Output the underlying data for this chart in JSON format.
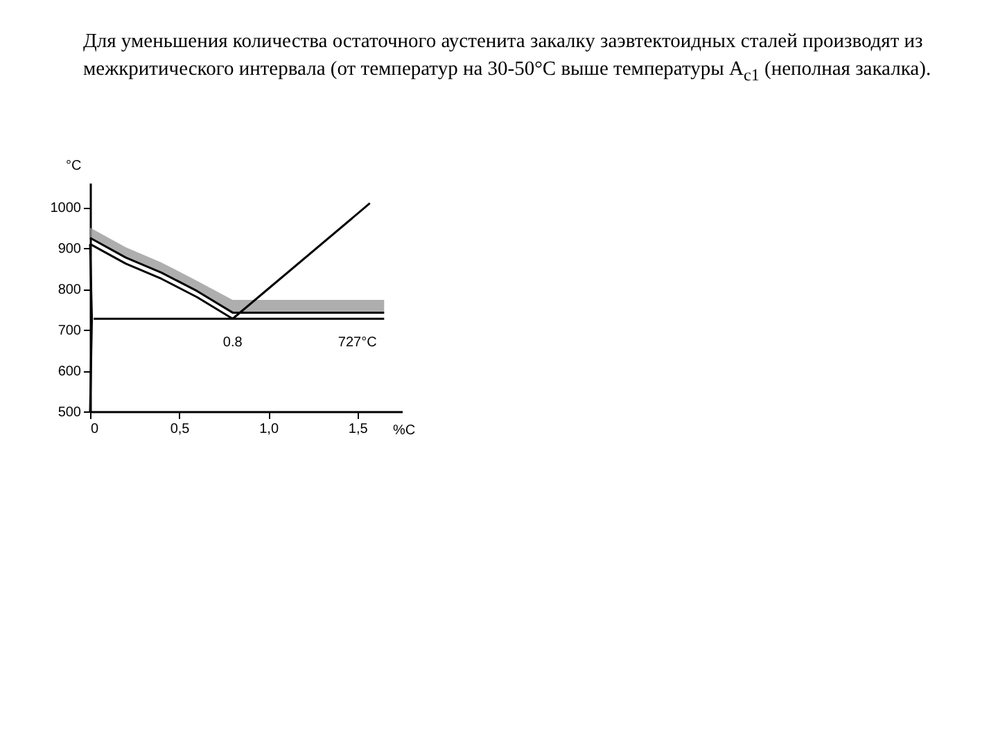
{
  "chart_data": {
    "type": "line",
    "title": "Для уменьшения количества остаточного аустенита закалку заэвтектоидных сталей производят  из межкритического интервала (от температур на 30-50°C выше  температуры A$_{c1}$ (неполная закалка).",
    "xlabel": "%C",
    "ylabel": "°C",
    "xlim": [
      0,
      1.75
    ],
    "xticks": [
      0,
      {
        "value": 0.5,
        "label": "0,5"
      },
      {
        "value": 1.0,
        "label": "1,0"
      },
      {
        "value": 1.5,
        "label": "1,5"
      }
    ],
    "ylim": [
      500,
      1060
    ],
    "yticks": [
      500,
      600,
      700,
      800,
      900,
      1000
    ],
    "grid": false,
    "marker": "none",
    "line_style": "solid",
    "series": [
      {
        "color": "#000000",
        "x": [
          0,
          0.2,
          0.4,
          0.6,
          0.8,
          1.65
        ],
        "values": [
          925,
          877,
          840,
          795,
          742,
          742
        ],
        "lower": [
          925,
          877,
          840,
          795,
          742,
          742
        ],
        "upper": [
          950,
          902,
          865,
          820,
          773,
          773
        ]
      },
      {
        "color": "#000000",
        "x": [
          0,
          0.2,
          0.4,
          0.6,
          0.8
        ],
        "values": [
          910,
          862,
          825,
          780,
          727
        ]
      },
      {
        "color": "#000000",
        "x": [
          0.8,
          1.57
        ],
        "values": [
          727,
          1010
        ]
      },
      {
        "color": "#000000",
        "x": [
          0.02,
          1.65
        ],
        "values": [
          727,
          727
        ]
      },
      {
        "color": "#000000",
        "x": [
          0,
          0.01,
          0
        ],
        "values": [
          910,
          727,
          500
        ]
      }
    ],
    "annotations": [
      {
        "text": "0.8",
        "x": 0.8,
        "y": 727
      },
      {
        "text": "727°C",
        "x": 1.5,
        "y": 727
      }
    ]
  }
}
